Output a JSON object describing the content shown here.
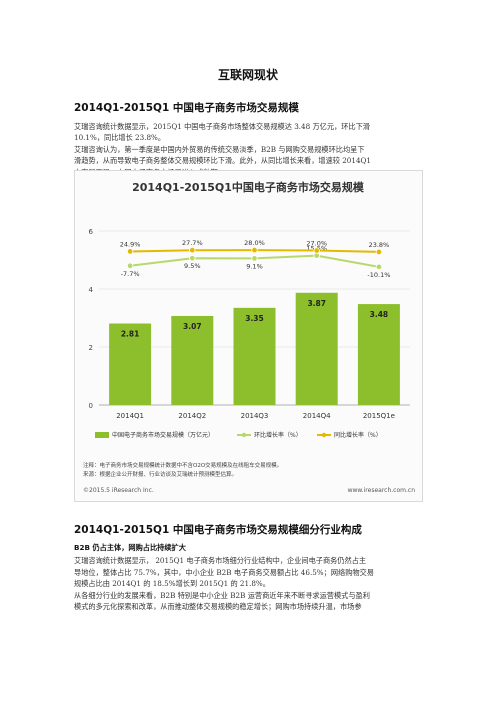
{
  "document": {
    "title": "互联网现状",
    "section1": {
      "heading": "2014Q1-2015Q1 中国电子商务市场交易规模",
      "lines": [
        "艾瑞咨询统计数据显示，2015Q1 中国电子商务市场整体交易规模达 3.48 万亿元，环比下滑",
        "10.1%，同比增长 23.8%。",
        "艾瑞咨询认为，第一季度是中国内外贸易的传统交易淡季，B2B 与网购交易规模环比均呈下",
        "滑趋势，从而导致电子商务整体交易规模环比下滑。此外，从同比增长来看，增速较 2014Q1",
        "亦有所下滑，中国电子商务市场已进入成熟期。"
      ]
    },
    "section2": {
      "heading": "2014Q1-2015Q1 中国电子商务市场交易规模细分行业构成",
      "subheading": "B2B 仍占主体，网购占比持续扩大",
      "lines": [
        "艾瑞咨询统计数据显示， 2015Q1 电子商务市场细分行业结构中，企业间电子商务仍然占主",
        "导地位，整体占比 75.7%，其中，中小企业 B2B 电子商务交易额占比 46.5%；网络购物交易",
        "规模占比由 2014Q1 的 18.5%增长到 2015Q1 的 21.8%。",
        "从各细分行业的发展来看，B2B 特别是中小企业 B2B 运营商近年来不断寻求运营模式与盈利",
        "模式的多元化探索和改革，从而推动整体交易规模的稳定增长；网购市场持续升温，市场参"
      ]
    }
  },
  "chart_data": {
    "type": "bar",
    "title": "2014Q1-2015Q1中国电子商务市场交易规模",
    "categories": [
      "2014Q1",
      "2014Q2",
      "2014Q3",
      "2014Q4",
      "2015Q1e"
    ],
    "ylim": [
      0,
      6
    ],
    "yticks": [
      "0",
      "2",
      "4",
      "6"
    ],
    "series": [
      {
        "name": "中国电子商务市场交易规模（万亿元）",
        "values": [
          2.81,
          3.07,
          3.35,
          3.87,
          3.48
        ],
        "labels": [
          "2.81",
          "3.07",
          "3.35",
          "3.87",
          "3.48"
        ],
        "color": "#8cbf2b"
      },
      {
        "name": "环比增长率（%）",
        "values": [
          -7.7,
          9.5,
          9.1,
          15.5,
          -10.1
        ],
        "labels": [
          "-7.7%",
          "9.5%",
          "9.1%",
          "15.5%",
          "-10.1%"
        ],
        "color": "#b7d96b"
      },
      {
        "name": "同比增长率（%）",
        "values": [
          24.9,
          27.7,
          28.0,
          27.0,
          23.8
        ],
        "labels": [
          "24.9%",
          "27.7%",
          "28.0%",
          "27.0%",
          "23.8%"
        ],
        "color": "#e6b800"
      }
    ],
    "notes": [
      "注释：电子商务市场交易规模统计数据中不含O2O交易规模及在线租车交易规模。",
      "来源：根据企业公开财报、行业访谈及艾瑞统计预测模型估算。"
    ],
    "footer_left": "©2015.5 iResearch Inc.",
    "footer_right": "www.iresearch.com.cn",
    "legend_position": "bottom"
  }
}
